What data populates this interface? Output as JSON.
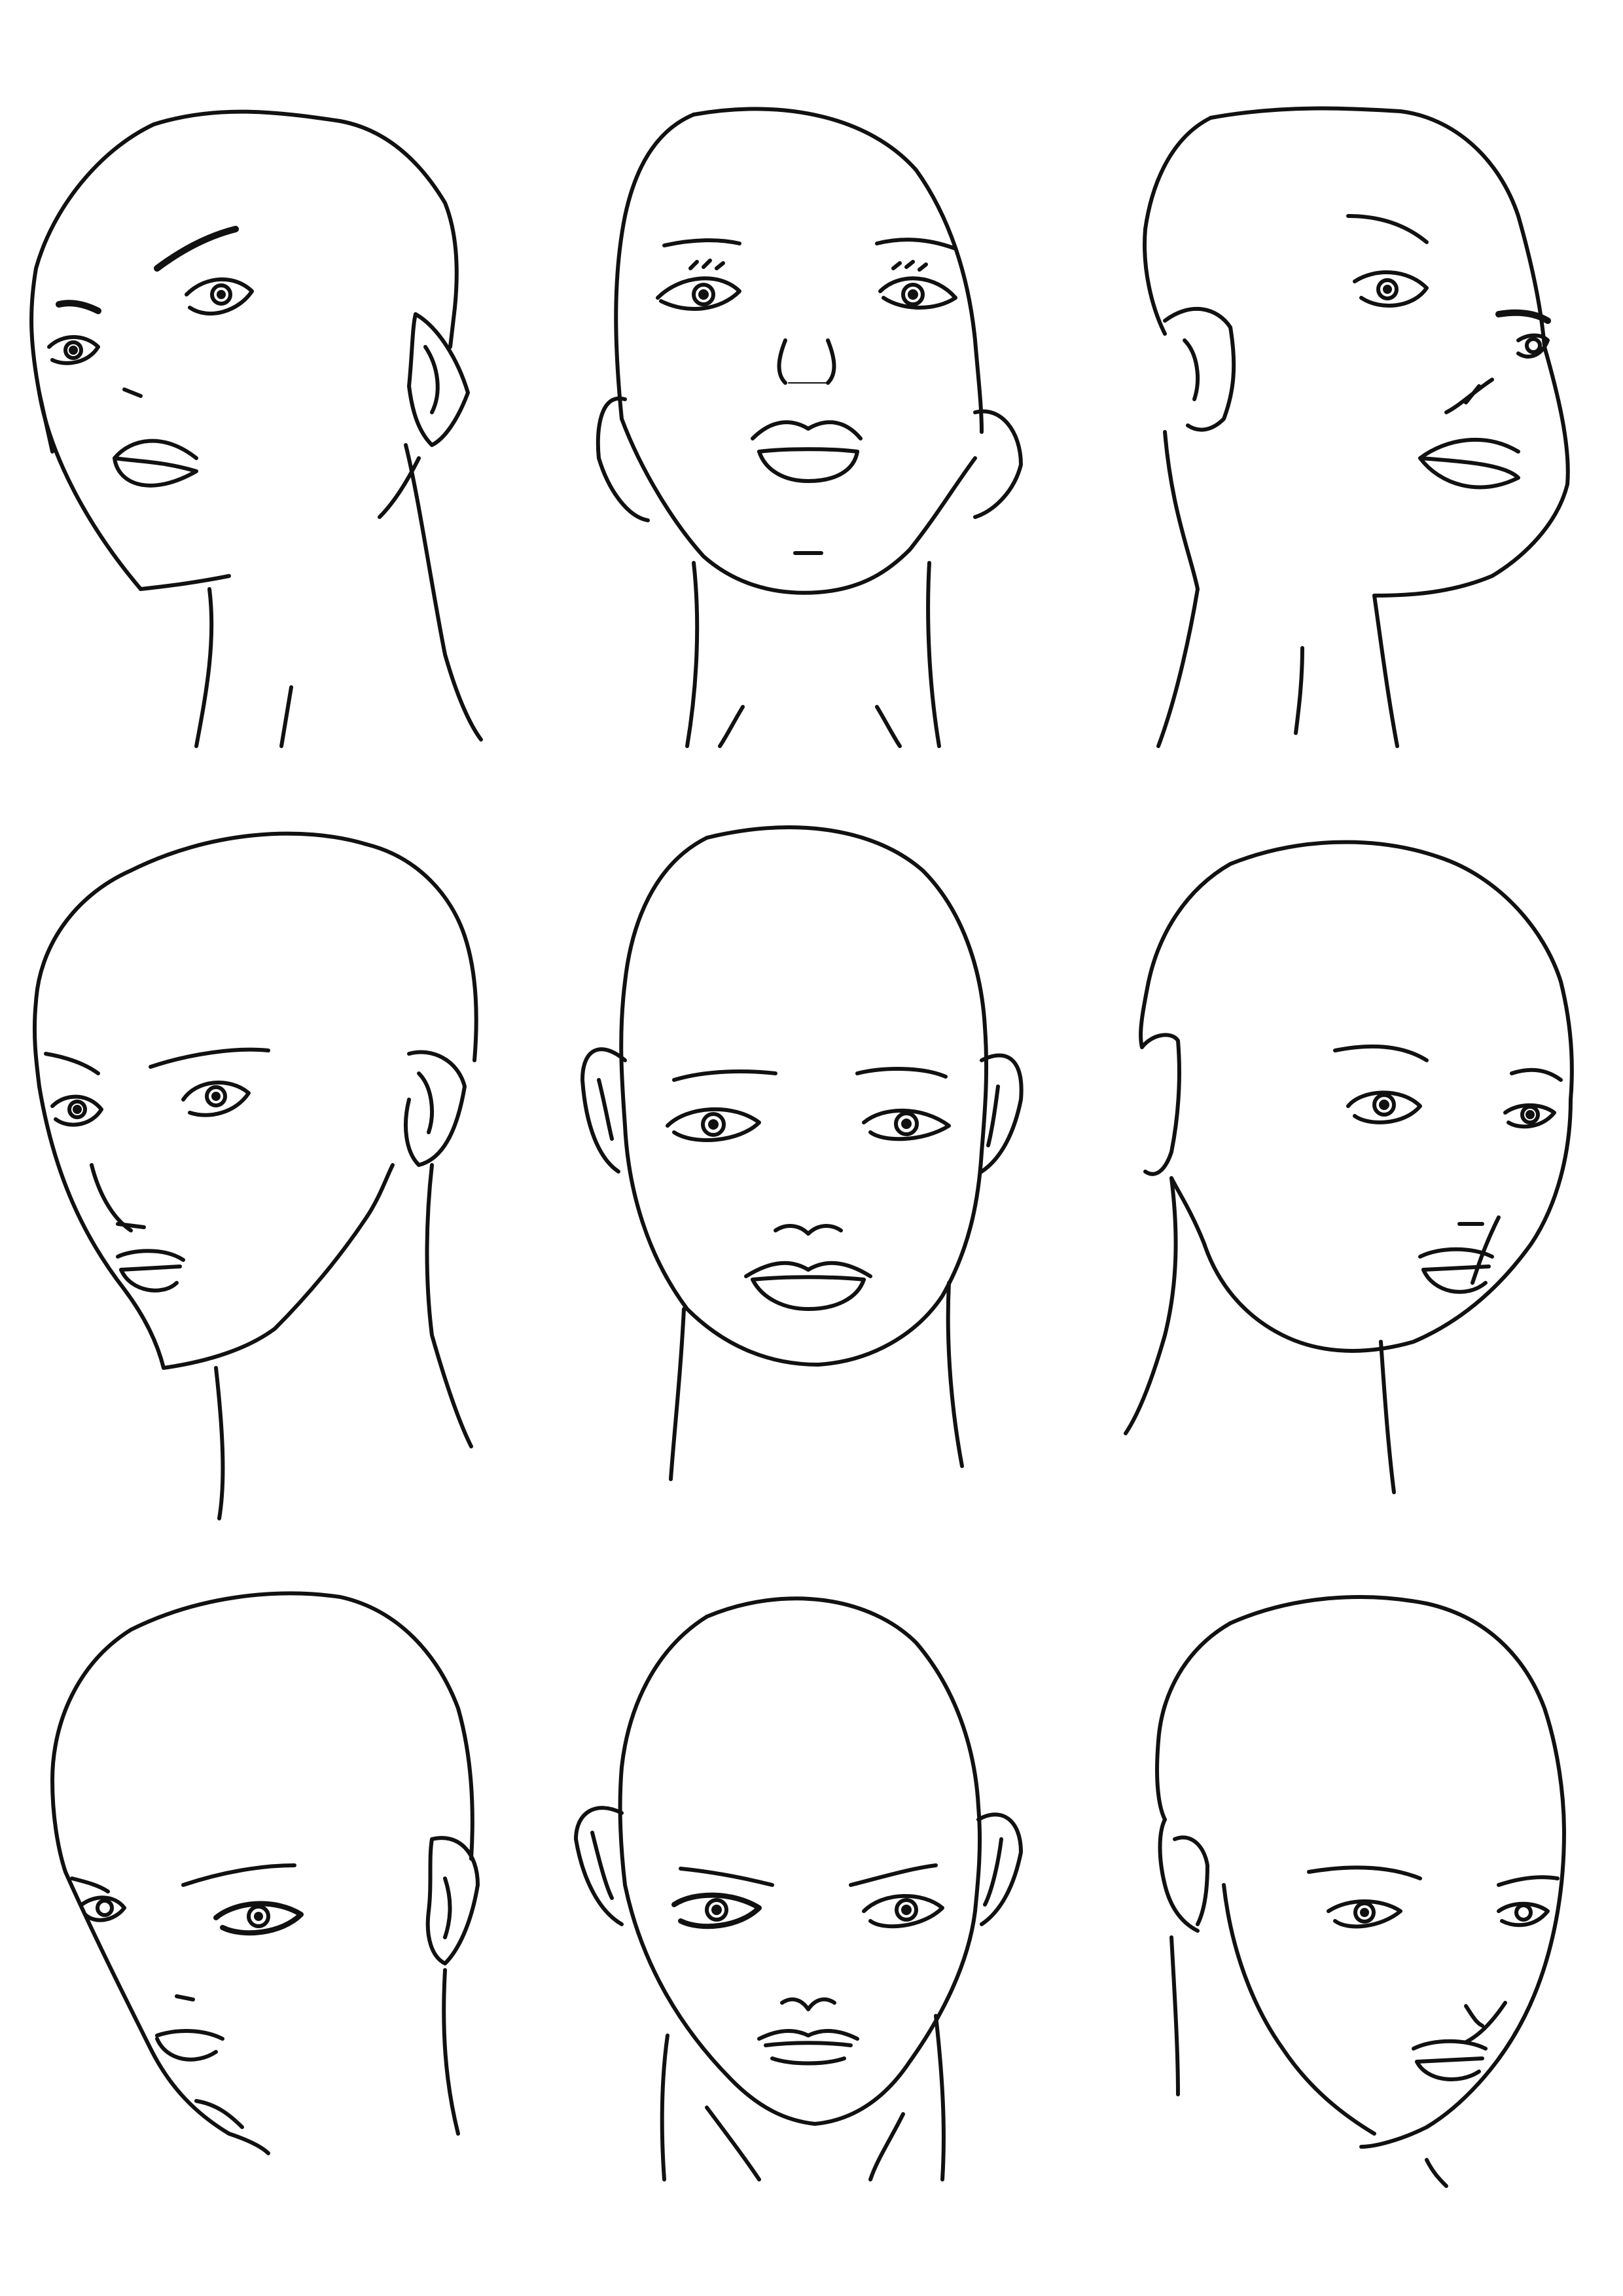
{
  "sheet": {
    "background": "#ffffff",
    "ink": "#111111"
  },
  "heads": [
    {
      "view": "three-quarter-left-looking-up"
    },
    {
      "view": "front-looking-up"
    },
    {
      "view": "three-quarter-right-looking-up"
    },
    {
      "view": "three-quarter-left-level"
    },
    {
      "view": "front-level"
    },
    {
      "view": "three-quarter-right-level"
    },
    {
      "view": "three-quarter-left-looking-down"
    },
    {
      "view": "front-looking-down"
    },
    {
      "view": "three-quarter-right-looking-down"
    }
  ]
}
